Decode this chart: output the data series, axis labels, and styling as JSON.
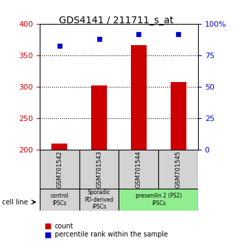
{
  "title": "GDS4141 / 211711_s_at",
  "samples": [
    "GSM701542",
    "GSM701543",
    "GSM701544",
    "GSM701545"
  ],
  "counts": [
    210,
    303,
    367,
    308
  ],
  "percentiles": [
    83,
    88,
    92,
    92
  ],
  "ylim_left": [
    200,
    400
  ],
  "ylim_right": [
    0,
    100
  ],
  "yticks_left": [
    200,
    250,
    300,
    350,
    400
  ],
  "yticks_right": [
    0,
    25,
    50,
    75,
    100
  ],
  "ytick_right_labels": [
    "0",
    "25",
    "50",
    "75",
    "100%"
  ],
  "hlines": [
    250,
    300,
    350
  ],
  "bar_color": "#cc0000",
  "dot_color": "#0000cc",
  "left_axis_color": "#cc0000",
  "right_axis_color": "#0000cc",
  "groups": [
    {
      "label": "control\nIPSCs",
      "start": 0,
      "end": 1,
      "color": "#d3d3d3"
    },
    {
      "label": "Sporadic\nPD-derived\niPSCs",
      "start": 1,
      "end": 2,
      "color": "#d3d3d3"
    },
    {
      "label": "presenilin 2 (PS2)\niPSCs",
      "start": 2,
      "end": 4,
      "color": "#90ee90"
    }
  ],
  "cell_line_label": "cell line",
  "legend_count": "count",
  "legend_pct": "percentile rank within the sample",
  "bar_width": 0.4,
  "header_bg": "#d3d3d3"
}
